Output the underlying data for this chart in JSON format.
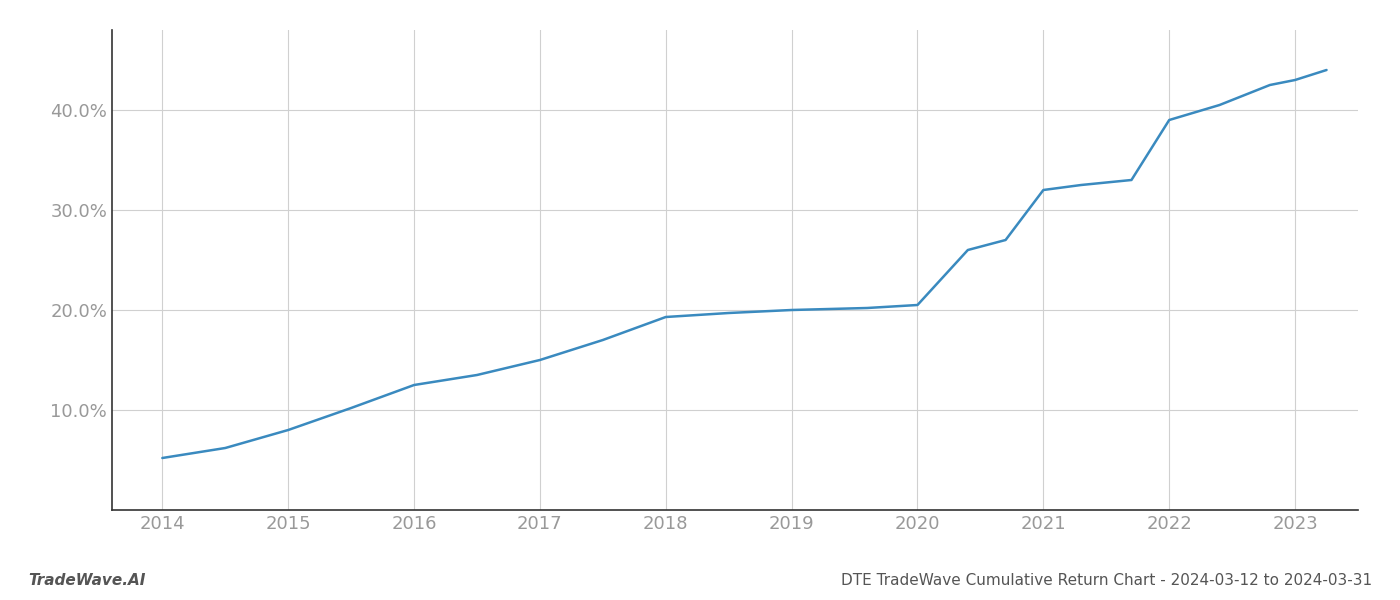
{
  "x": [
    2014.0,
    2014.5,
    2015.0,
    2015.5,
    2016.0,
    2016.5,
    2017.0,
    2017.5,
    2018.0,
    2018.5,
    2019.0,
    2019.3,
    2019.6,
    2020.0,
    2020.4,
    2020.7,
    2021.0,
    2021.3,
    2021.7,
    2022.0,
    2022.4,
    2022.8,
    2023.0,
    2023.25
  ],
  "y": [
    5.2,
    6.2,
    8.0,
    10.2,
    12.5,
    13.5,
    15.0,
    17.0,
    19.3,
    19.7,
    20.0,
    20.1,
    20.2,
    20.5,
    26.0,
    27.0,
    32.0,
    32.5,
    33.0,
    39.0,
    40.5,
    42.5,
    43.0,
    44.0
  ],
  "line_color": "#3a8abf",
  "line_width": 1.8,
  "background_color": "#ffffff",
  "grid_color": "#d0d0d0",
  "xticks": [
    2014,
    2015,
    2016,
    2017,
    2018,
    2019,
    2020,
    2021,
    2022,
    2023
  ],
  "yticks": [
    10.0,
    20.0,
    30.0,
    40.0
  ],
  "xlim": [
    2013.6,
    2023.5
  ],
  "ylim": [
    0,
    48
  ],
  "footer_left": "TradeWave.AI",
  "footer_right": "DTE TradeWave Cumulative Return Chart - 2024-03-12 to 2024-03-31",
  "footer_fontsize": 11,
  "tick_fontsize": 13,
  "tick_color": "#999999",
  "spine_color": "#333333",
  "left_spine_visible": true
}
